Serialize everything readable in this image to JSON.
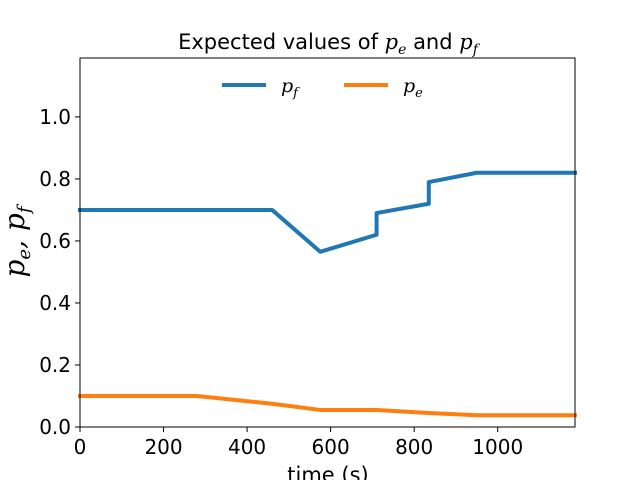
{
  "chart_data": {
    "type": "line",
    "title": "Expected values of p_e and p_f",
    "title_parts": {
      "prefix": "Expected values of ",
      "var1": "p",
      "sub1": "e",
      "mid": " and ",
      "var2": "p",
      "sub2": "f"
    },
    "xlabel": "time (s)",
    "ylabel": "p_e, p_f",
    "xlim": [
      0,
      1185
    ],
    "ylim": [
      0,
      1.19
    ],
    "xticks": [
      0,
      200,
      400,
      600,
      800,
      1000
    ],
    "yticks": [
      0.0,
      0.2,
      0.4,
      0.6,
      0.8,
      1.0
    ],
    "ytick_labels": [
      "0.0",
      "0.2",
      "0.4",
      "0.6",
      "0.8",
      "1.0"
    ],
    "grid": false,
    "legend_placement": "upper-center",
    "series": [
      {
        "name": "p_f",
        "label_var": "p",
        "label_sub": "f",
        "color": "#1f77b4",
        "x": [
          0,
          460,
          575,
          710,
          710,
          835,
          835,
          950,
          1185
        ],
        "y": [
          0.7,
          0.7,
          0.565,
          0.62,
          0.69,
          0.72,
          0.79,
          0.82,
          0.82
        ]
      },
      {
        "name": "p_e",
        "label_var": "p",
        "label_sub": "e",
        "color": "#ff7f0e",
        "x": [
          0,
          280,
          460,
          575,
          710,
          835,
          950,
          1185
        ],
        "y": [
          0.1,
          0.1,
          0.075,
          0.055,
          0.055,
          0.045,
          0.038,
          0.038
        ]
      }
    ]
  }
}
